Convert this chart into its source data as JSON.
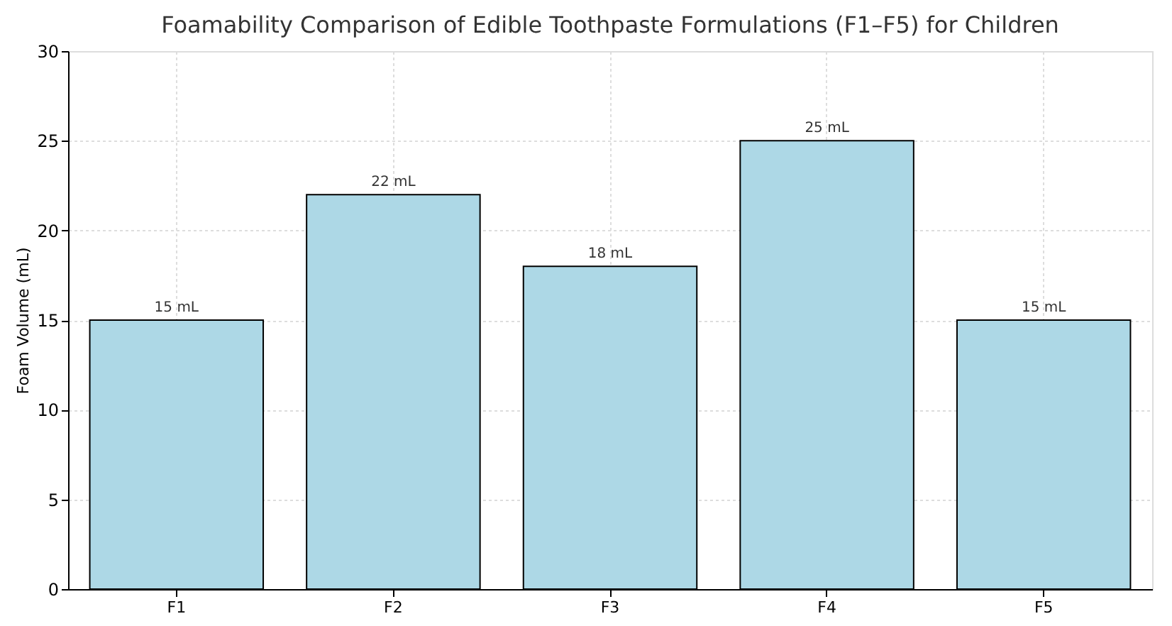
{
  "chart_data": {
    "type": "bar",
    "title": "Foamability Comparison of Edible Toothpaste Formulations (F1–F5) for Children",
    "ylabel": "Foam Volume (mL)",
    "categories": [
      "F1",
      "F2",
      "F3",
      "F4",
      "F5"
    ],
    "values": [
      15,
      22,
      18,
      25,
      15
    ],
    "value_labels": [
      "15 mL",
      "22 mL",
      "18 mL",
      "25 mL",
      "15 mL"
    ],
    "color": "#add8e6",
    "ylim": [
      0,
      30
    ],
    "yticks": [
      0,
      5,
      10,
      15,
      20,
      25,
      30
    ],
    "grid": true
  }
}
